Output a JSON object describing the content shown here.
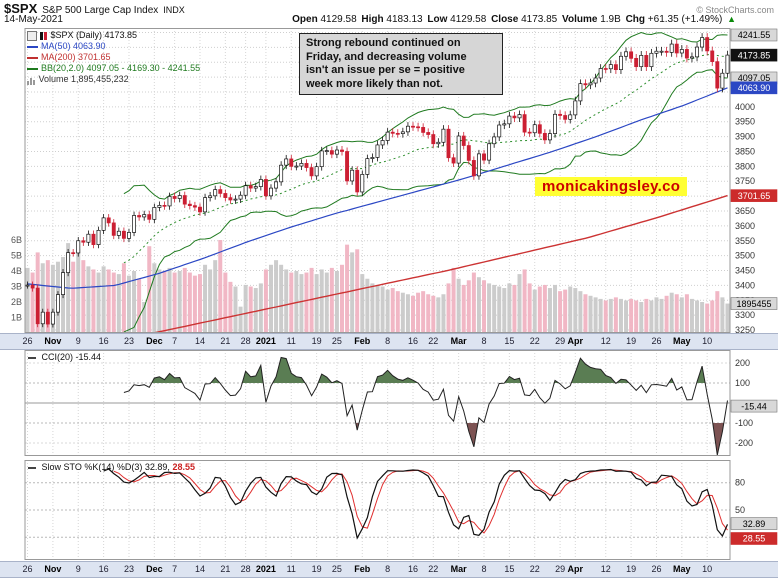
{
  "header": {
    "symbol": "$SPX",
    "name": "S&P 500 Large Cap Index",
    "exchange": "INDX",
    "date": "14-May-2021",
    "copyright": "© StockCharts.com",
    "quote": {
      "o_l": "Open",
      "o_v": "4129.58",
      "h_l": "High",
      "h_v": "4183.13",
      "l_l": "Low",
      "l_v": "4129.58",
      "c_l": "Close",
      "c_v": "4173.85",
      "v_l": "Volume",
      "v_v": "1.9B",
      "g_l": "Chg",
      "g_v": "+61.35 (+1.49%)",
      "arrow": "▲"
    }
  },
  "annotation": {
    "l1": "Strong rebound continued on",
    "l2": "Friday, and decreasing volume",
    "l3": "isn't an issue per se = positive",
    "l4": "week more likely than not."
  },
  "watermark": {
    "text": "monicakingsley.co"
  },
  "legend": {
    "main": {
      "title": "$SPX (Daily) 4173.85",
      "ma50": "MA(50) 4063.90",
      "ma200": "MA(200) 3701.65",
      "bb": "BB(20,2.0) 4097.05 - 4169.30 - 4241.55",
      "volume": "Volume 1,895,455,232"
    }
  },
  "panels": {
    "cci": {
      "label": "CCI(20) -15.44"
    },
    "sto": {
      "label": "Slow STO %K(14) %D(3)",
      "k": "32.89,",
      "d": "28.55"
    }
  },
  "chart_data": {
    "type": "candlestick",
    "title": "$SPX daily with MA(50), MA(200), BB(20,2.0), Volume, CCI(20), Slow Stochastics",
    "x_range": "26-Oct-2020 to 14-May-2021",
    "price_axis": {
      "min": 3240,
      "max": 4265,
      "grid_step": 50,
      "plain_labels": [
        4000,
        3950,
        3900,
        3850,
        3800,
        3750,
        3650,
        3600,
        3550,
        3500,
        3450,
        3400,
        3350,
        3300,
        3250
      ],
      "boxes": [
        {
          "text": "4241.55",
          "value": 4241.55,
          "style": "gray"
        },
        {
          "text": "4173.85",
          "value": 4173.85,
          "style": "black"
        },
        {
          "text": "4097.05",
          "value": 4097.05,
          "style": "gray"
        },
        {
          "text": "4063.90",
          "value": 4063.9,
          "style": "blue"
        },
        {
          "text": "3701.65",
          "value": 3701.65,
          "style": "red"
        },
        {
          "text": "1895455",
          "volume": 1.9,
          "style": "gray"
        }
      ]
    },
    "volume_axis_labels": [
      "6B",
      "5B",
      "4B",
      "3B",
      "2B",
      "1B"
    ],
    "tick_labels": [
      "26",
      "Nov",
      "9",
      "16",
      "23",
      "Dec",
      "7",
      "14",
      "21",
      "28",
      "2021",
      "11",
      "19",
      "25",
      "Feb",
      "8",
      "16",
      "22",
      "Mar",
      "8",
      "15",
      "22",
      "29",
      "Apr",
      "12",
      "19",
      "26",
      "May",
      "10"
    ],
    "tick_indices": [
      0,
      5,
      10,
      15,
      20,
      25,
      29,
      34,
      39,
      43,
      47,
      52,
      57,
      61,
      66,
      71,
      76,
      80,
      85,
      90,
      95,
      100,
      105,
      108,
      114,
      119,
      124,
      129,
      134
    ],
    "tick_bold": [
      false,
      true,
      false,
      false,
      false,
      true,
      false,
      false,
      false,
      false,
      true,
      false,
      false,
      false,
      true,
      false,
      false,
      false,
      true,
      false,
      false,
      false,
      false,
      true,
      false,
      false,
      false,
      true,
      false
    ],
    "closes": [
      3401,
      3391,
      3271,
      3310,
      3270,
      3310,
      3369,
      3443,
      3510,
      3509,
      3550,
      3545,
      3572,
      3537,
      3585,
      3627,
      3610,
      3568,
      3582,
      3558,
      3578,
      3635,
      3630,
      3638,
      3622,
      3662,
      3669,
      3667,
      3699,
      3692,
      3702,
      3673,
      3668,
      3663,
      3647,
      3695,
      3701,
      3722,
      3709,
      3695,
      3687,
      3690,
      3703,
      3735,
      3727,
      3732,
      3756,
      3701,
      3727,
      3748,
      3804,
      3825,
      3800,
      3801,
      3810,
      3796,
      3768,
      3799,
      3852,
      3853,
      3841,
      3855,
      3850,
      3751,
      3787,
      3714,
      3773,
      3826,
      3830,
      3872,
      3887,
      3915,
      3911,
      3910,
      3916,
      3935,
      3933,
      3931,
      3914,
      3907,
      3876,
      3881,
      3925,
      3829,
      3811,
      3902,
      3870,
      3820,
      3768,
      3842,
      3821,
      3876,
      3899,
      3939,
      3943,
      3969,
      3963,
      3974,
      3915,
      3913,
      3940,
      3911,
      3889,
      3910,
      3975,
      3971,
      3958,
      3973,
      4020,
      4078,
      4074,
      4080,
      4097,
      4129,
      4128,
      4142,
      4125,
      4170,
      4185,
      4163,
      4135,
      4173,
      4135,
      4180,
      4187,
      4187,
      4183,
      4211,
      4181,
      4193,
      4164,
      4168,
      4201,
      4233,
      4188,
      4152,
      4063,
      4113,
      4174
    ],
    "volumes_b": [
      4.2,
      3.9,
      5.2,
      4.5,
      4.7,
      4.4,
      4.6,
      4.9,
      5.8,
      4.6,
      5.4,
      4.7,
      4.3,
      4.1,
      3.9,
      4.3,
      4.1,
      3.9,
      3.8,
      4.5,
      3.7,
      4.0,
      3.5,
      2.0,
      5.6,
      4.5,
      4.1,
      4.0,
      4.2,
      3.9,
      4.0,
      4.2,
      3.9,
      3.7,
      3.8,
      4.4,
      4.1,
      4.7,
      6.0,
      3.9,
      3.3,
      3.0,
      1.7,
      3.1,
      3.0,
      2.9,
      3.2,
      4.1,
      4.4,
      4.7,
      4.4,
      4.1,
      3.9,
      4.0,
      3.8,
      3.9,
      4.2,
      3.8,
      4.1,
      3.9,
      4.2,
      4.0,
      4.4,
      5.7,
      5.2,
      5.4,
      3.8,
      3.5,
      3.2,
      3.1,
      3.0,
      2.8,
      2.9,
      2.7,
      2.6,
      2.5,
      2.4,
      2.6,
      2.7,
      2.5,
      2.4,
      2.3,
      2.5,
      3.2,
      4.2,
      3.5,
      3.1,
      3.4,
      3.9,
      3.6,
      3.4,
      3.2,
      3.1,
      3.0,
      2.9,
      3.2,
      3.1,
      3.8,
      4.1,
      3.2,
      2.8,
      3.0,
      3.1,
      2.9,
      3.1,
      2.7,
      2.8,
      3.0,
      2.9,
      2.7,
      2.5,
      2.4,
      2.3,
      2.2,
      2.1,
      2.2,
      2.3,
      2.2,
      2.1,
      2.2,
      2.1,
      2.0,
      2.2,
      2.1,
      2.3,
      2.2,
      2.4,
      2.6,
      2.5,
      2.3,
      2.5,
      2.2,
      2.1,
      2.0,
      1.9,
      2.1,
      2.7,
      2.3,
      1.9
    ],
    "ma50_anchors": [
      3405,
      3390,
      3400,
      3440,
      3490,
      3545,
      3595,
      3640,
      3680,
      3720,
      3760,
      3805,
      3850,
      3900,
      3955,
      4005,
      4063.9
    ],
    "ma200_anchors": [
      3150,
      3200,
      3250,
      3300,
      3350,
      3400,
      3450,
      3505,
      3560,
      3628,
      3701.65
    ],
    "bollinger": {
      "period": 20,
      "mult": 2,
      "last_lower": 4097.05,
      "last_mid": 4169.3,
      "last_upper": 4241.55
    },
    "cci": {
      "period": 20,
      "last": -15.44,
      "range": [
        -265,
        265
      ],
      "plain_labels": [
        200,
        100,
        -100,
        -200
      ],
      "boxes": [
        {
          "text": "-15.44",
          "value": -15.44,
          "style": "gray"
        }
      ]
    },
    "stochastics": {
      "k_period": 14,
      "slowing": 3,
      "d_period": 3,
      "k_last": 32.89,
      "d_last": 28.55,
      "plain_labels": [
        80,
        50,
        20
      ],
      "boxes": [
        {
          "text": "32.89",
          "value": 32.89,
          "style": "gray"
        },
        {
          "text": "28.55",
          "value": 28.55,
          "style": "red"
        }
      ]
    },
    "colors": {
      "candle_up": "#ffffff",
      "candle_up_stroke": "#111111",
      "candle_down": "#cc1f33",
      "volume_up": "#c9c9c9",
      "volume_down": "#f0b3c2",
      "ma50": "#2b47c4",
      "ma200": "#cc3333",
      "bb": "#1f7a1f",
      "cci_line": "#222222",
      "cci_fill_high": "#5a7d53",
      "cci_fill_low": "#7d5353",
      "sto_k": "#111111",
      "sto_d": "#e03030",
      "watermark_bg": "#ffff33",
      "watermark_text": "#cc0000",
      "axis_band_bg": "#dde4f1"
    }
  }
}
